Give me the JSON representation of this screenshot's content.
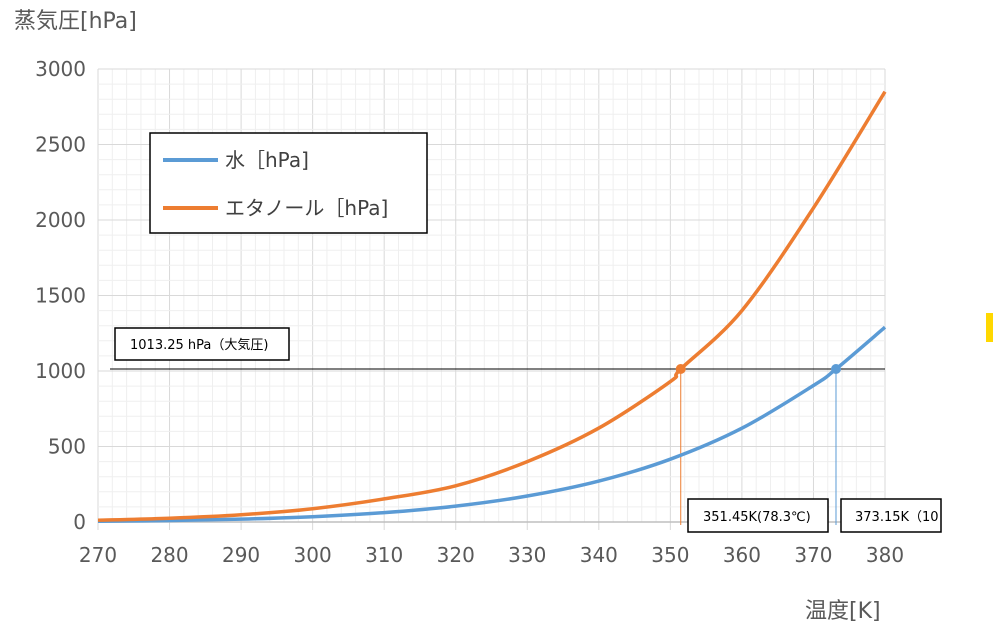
{
  "chart_data": {
    "type": "line",
    "ylabel": "蒸気圧[hPa]",
    "xlabel": "温度[K]",
    "xlim": [
      270,
      380
    ],
    "ylim": [
      0,
      3000
    ],
    "xticks": [
      270,
      280,
      290,
      300,
      310,
      320,
      330,
      340,
      350,
      360,
      370,
      380
    ],
    "yticks": [
      0,
      500,
      1000,
      1500,
      2000,
      2500,
      3000
    ],
    "grid": true,
    "legend_position": "top-left",
    "series": [
      {
        "name": "水［hPa]",
        "color": "#5b9bd5",
        "x": [
          270,
          280,
          290,
          300,
          310,
          320,
          330,
          340,
          350,
          360,
          370,
          373.15,
          380
        ],
        "y": [
          5,
          10,
          19,
          35,
          62,
          105,
          172,
          271,
          416,
          621,
          904,
          1013,
          1290
        ]
      },
      {
        "name": "エタノール［hPa]",
        "color": "#ed7d31",
        "x": [
          270,
          280,
          290,
          300,
          310,
          320,
          330,
          340,
          350,
          351.45,
          360,
          370,
          380
        ],
        "y": [
          12,
          25,
          48,
          88,
          153,
          240,
          400,
          622,
          930,
          1013,
          1400,
          2080,
          2850
        ]
      }
    ],
    "reference_line": {
      "y": 1013.25,
      "label": "1013.25 hPa（大気圧)"
    },
    "markers": [
      {
        "x": 351.45,
        "y": 1013.25,
        "color": "#ed7d31",
        "label": "351.45K(78.3℃)"
      },
      {
        "x": 373.15,
        "y": 1013.25,
        "color": "#5b9bd5",
        "label": "373.15K（10"
      }
    ]
  }
}
